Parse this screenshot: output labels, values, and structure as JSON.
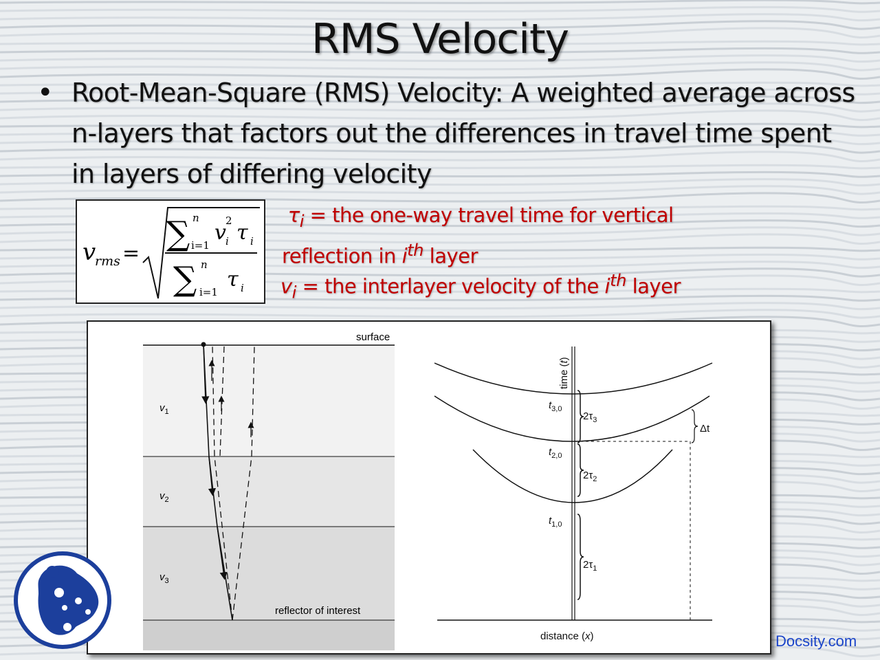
{
  "slide": {
    "title": "RMS Velocity",
    "bullet_symbol": "•",
    "bullet_text": "Root-Mean-Square (RMS) Velocity: A weighted average across n-layers that factors out the differences in travel time spent in layers of differing velocity"
  },
  "formula": {
    "lhs": "v",
    "lhs_sub": "rms",
    "equals": "=",
    "sum": "∑",
    "upper": "n",
    "lower": "i=1",
    "num_v": "v",
    "num_v_sub": "i",
    "num_v_sup": "2",
    "tau": "τ",
    "tau_sub": "i"
  },
  "definitions": {
    "tau_symbol": "τ",
    "tau_sub": "i",
    "tau_text_1": " = the one-way travel time for vertical",
    "tau_text_2": "reflection in ",
    "tau_i": "i",
    "tau_th": "th",
    "tau_text_3": " layer",
    "v_symbol": "v",
    "v_sub": "i",
    "v_text_1": " = the interlayer velocity of the ",
    "v_i": "i",
    "v_th": "th",
    "v_text_2": " layer"
  },
  "figure": {
    "left": {
      "surface_label": "surface",
      "layer1": "v",
      "layer1_sub": "1",
      "layer2": "v",
      "layer2_sub": "2",
      "layer3": "v",
      "layer3_sub": "3",
      "reflector_label": "reflector of interest"
    },
    "right": {
      "y_axis_label": "time (",
      "y_axis_var": "t",
      "y_axis_close": ")",
      "x_axis_label": "distance (",
      "x_axis_var": "x",
      "x_axis_close": ")",
      "t30": "t",
      "t30_sub": "3,0",
      "t20": "t",
      "t20_sub": "2,0",
      "t10": "t",
      "t10_sub": "1,0",
      "tau3": "2τ",
      "tau3_sub": "3",
      "tau2": "2τ",
      "tau2_sub": "2",
      "tau1": "2τ",
      "tau1_sub": "1",
      "delta_t": "Δt"
    }
  },
  "footer": {
    "brand": "Docsity.com"
  },
  "colors": {
    "accent_red": "#c00000",
    "brand_blue": "#1a44c9",
    "logo_blue": "#1c3f9c"
  },
  "icons": {
    "logo": "docsity-logo-icon"
  }
}
